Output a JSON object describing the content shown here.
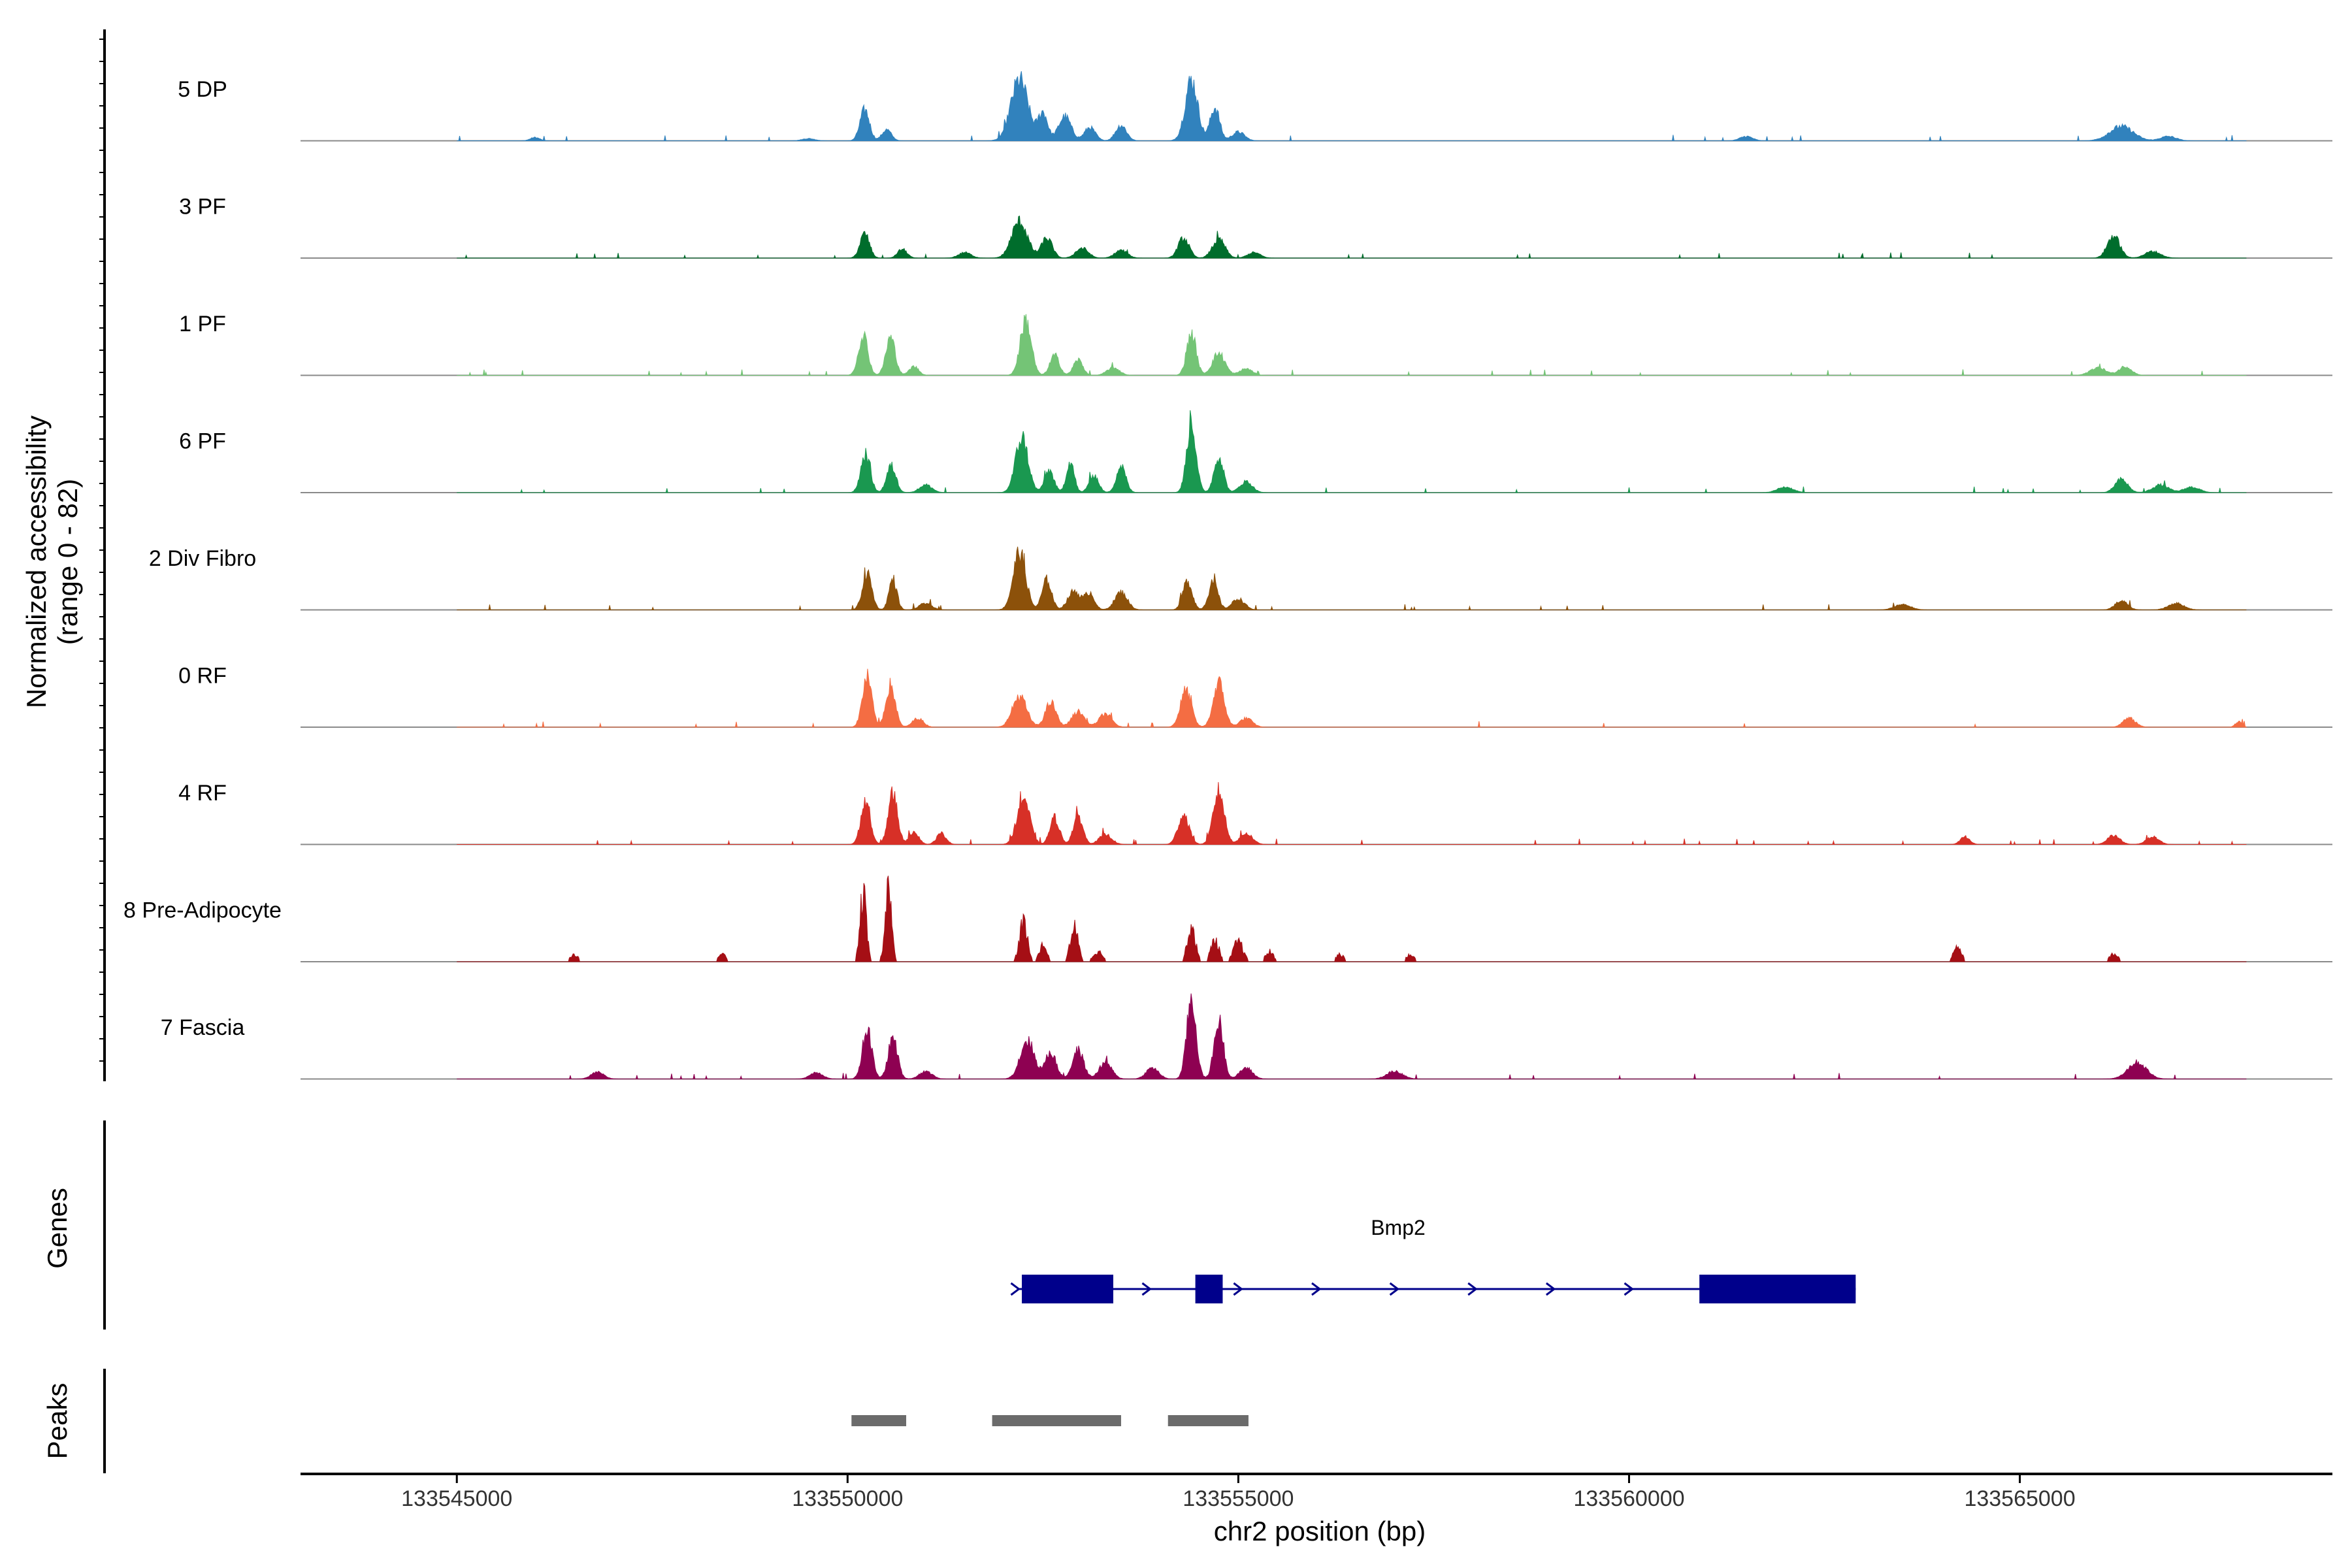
{
  "chart_data": {
    "type": "area",
    "y_axis_label": "Normalized accessibility",
    "y_axis_sublabel": "(range 0 - 82)",
    "y_range": [
      0,
      82
    ],
    "x_axis_label": "chr2 position (bp)",
    "x_range": [
      133544000,
      133569000
    ],
    "x_ticks": [
      133545000,
      133550000,
      133555000,
      133560000,
      133565000
    ],
    "x_tick_labels": [
      "133545000",
      "133550000",
      "133555000",
      "133560000",
      "133565000"
    ],
    "coverage_extent": [
      133545000,
      133567900
    ],
    "tracks": [
      {
        "name": "5 DP",
        "color": "#3182bd",
        "peaks": [
          [
            133546000,
            3,
            60
          ],
          [
            133549500,
            2,
            80
          ],
          [
            133550220,
            28,
            60
          ],
          [
            133550500,
            10,
            60
          ],
          [
            133552200,
            55,
            110
          ],
          [
            133552500,
            25,
            60
          ],
          [
            133552780,
            22,
            80
          ],
          [
            133553100,
            12,
            70
          ],
          [
            133553500,
            14,
            70
          ],
          [
            133554400,
            55,
            80
          ],
          [
            133554700,
            30,
            60
          ],
          [
            133555000,
            8,
            80
          ],
          [
            133561500,
            4,
            80
          ],
          [
            133566300,
            13,
            150
          ],
          [
            133566900,
            4,
            100
          ]
        ]
      },
      {
        "name": "3 PF",
        "color": "#006d2c",
        "peaks": [
          [
            133550220,
            22,
            60
          ],
          [
            133550700,
            8,
            60
          ],
          [
            133551500,
            5,
            80
          ],
          [
            133552200,
            33,
            100
          ],
          [
            133552550,
            18,
            70
          ],
          [
            133553000,
            9,
            80
          ],
          [
            133553500,
            7,
            80
          ],
          [
            133554300,
            18,
            70
          ],
          [
            133554750,
            17,
            80
          ],
          [
            133555200,
            5,
            80
          ],
          [
            133566200,
            20,
            80
          ],
          [
            133566700,
            6,
            100
          ]
        ]
      },
      {
        "name": "1 PF",
        "color": "#74c476",
        "peaks": [
          [
            133550200,
            37,
            60
          ],
          [
            133550550,
            34,
            60
          ],
          [
            133550850,
            8,
            60
          ],
          [
            133552280,
            50,
            70
          ],
          [
            133552650,
            18,
            60
          ],
          [
            133552950,
            14,
            60
          ],
          [
            133553400,
            7,
            80
          ],
          [
            133554400,
            38,
            60
          ],
          [
            133554750,
            20,
            80
          ],
          [
            133555100,
            6,
            80
          ],
          [
            133566000,
            7,
            100
          ],
          [
            133566350,
            8,
            80
          ]
        ]
      },
      {
        "name": "6 PF",
        "color": "#1a9850",
        "peaks": [
          [
            133550230,
            35,
            60
          ],
          [
            133550560,
            24,
            60
          ],
          [
            133551000,
            7,
            80
          ],
          [
            133552230,
            50,
            80
          ],
          [
            133552580,
            20,
            60
          ],
          [
            133552850,
            28,
            50
          ],
          [
            133553150,
            16,
            60
          ],
          [
            133553500,
            24,
            60
          ],
          [
            133554400,
            63,
            60
          ],
          [
            133554750,
            33,
            60
          ],
          [
            133555100,
            10,
            80
          ],
          [
            133562000,
            5,
            100
          ],
          [
            133566300,
            12,
            80
          ],
          [
            133566800,
            7,
            100
          ],
          [
            133567200,
            5,
            100
          ]
        ]
      },
      {
        "name": "2 Div Fibro",
        "color": "#8c510a",
        "peaks": [
          [
            133550250,
            33,
            60
          ],
          [
            133550580,
            28,
            50
          ],
          [
            133551000,
            6,
            80
          ],
          [
            133552200,
            52,
            80
          ],
          [
            133552550,
            27,
            60
          ],
          [
            133552900,
            17,
            80
          ],
          [
            133553100,
            15,
            60
          ],
          [
            133553500,
            16,
            80
          ],
          [
            133554350,
            26,
            60
          ],
          [
            133554680,
            25,
            60
          ],
          [
            133555000,
            10,
            80
          ],
          [
            133563500,
            5,
            100
          ],
          [
            133566300,
            8,
            80
          ],
          [
            133567000,
            6,
            100
          ]
        ]
      },
      {
        "name": "0 RF",
        "color": "#f46d43",
        "peaks": [
          [
            133550250,
            45,
            60
          ],
          [
            133550550,
            38,
            60
          ],
          [
            133550900,
            8,
            70
          ],
          [
            133552200,
            28,
            90
          ],
          [
            133552600,
            22,
            70
          ],
          [
            133552950,
            14,
            80
          ],
          [
            133553300,
            12,
            80
          ],
          [
            133554330,
            33,
            70
          ],
          [
            133554750,
            40,
            70
          ],
          [
            133555100,
            8,
            80
          ],
          [
            133566400,
            8,
            80
          ],
          [
            133567800,
            5,
            40
          ]
        ]
      },
      {
        "name": "4 RF",
        "color": "#d73027",
        "peaks": [
          [
            133550230,
            38,
            60
          ],
          [
            133550580,
            46,
            60
          ],
          [
            133550850,
            12,
            60
          ],
          [
            133551200,
            10,
            60
          ],
          [
            133552250,
            42,
            80
          ],
          [
            133552650,
            24,
            60
          ],
          [
            133552950,
            26,
            60
          ],
          [
            133553300,
            9,
            80
          ],
          [
            133554300,
            27,
            70
          ],
          [
            133554750,
            48,
            70
          ],
          [
            133555100,
            10,
            80
          ],
          [
            133564300,
            7,
            60
          ],
          [
            133566200,
            8,
            80
          ],
          [
            133566700,
            7,
            80
          ]
        ]
      },
      {
        "name": "8 Pre-Adipocyte",
        "color": "#a50f15",
        "peaks": [
          [
            133546500,
            7,
            50
          ],
          [
            133548400,
            7,
            50
          ],
          [
            133550200,
            66,
            40
          ],
          [
            133550520,
            76,
            40
          ],
          [
            133552250,
            38,
            50
          ],
          [
            133552500,
            16,
            50
          ],
          [
            133552900,
            33,
            50
          ],
          [
            133553200,
            10,
            60
          ],
          [
            133554400,
            35,
            50
          ],
          [
            133554700,
            22,
            50
          ],
          [
            133555000,
            20,
            60
          ],
          [
            133555400,
            10,
            50
          ],
          [
            133556300,
            7,
            50
          ],
          [
            133557200,
            7,
            50
          ],
          [
            133564200,
            15,
            50
          ],
          [
            133566200,
            7,
            60
          ]
        ]
      },
      {
        "name": "7 Fascia",
        "color": "#8e0152",
        "peaks": [
          [
            133546800,
            6,
            80
          ],
          [
            133549600,
            6,
            80
          ],
          [
            133550250,
            45,
            60
          ],
          [
            133550580,
            37,
            60
          ],
          [
            133551000,
            7,
            80
          ],
          [
            133552300,
            35,
            90
          ],
          [
            133552600,
            24,
            70
          ],
          [
            133552950,
            26,
            70
          ],
          [
            133553300,
            15,
            80
          ],
          [
            133553900,
            10,
            80
          ],
          [
            133554400,
            72,
            60
          ],
          [
            133554750,
            52,
            60
          ],
          [
            133555100,
            10,
            80
          ],
          [
            133557000,
            7,
            100
          ],
          [
            133566500,
            15,
            120
          ]
        ]
      }
    ],
    "genes_label": "Genes",
    "gene": {
      "name": "Bmp2",
      "strand": "+",
      "start": 133552200,
      "end": 133562900,
      "exons": [
        [
          133552230,
          133553400
        ],
        [
          133554450,
          133554800
        ],
        [
          133560900,
          133562900
        ]
      ],
      "color": "#00008b"
    },
    "peaks_label": "Peaks",
    "peak_regions": [
      [
        133550050,
        133550750
      ],
      [
        133551850,
        133553500
      ],
      [
        133554100,
        133555130
      ]
    ],
    "peak_region_color": "#6b6b6b"
  }
}
